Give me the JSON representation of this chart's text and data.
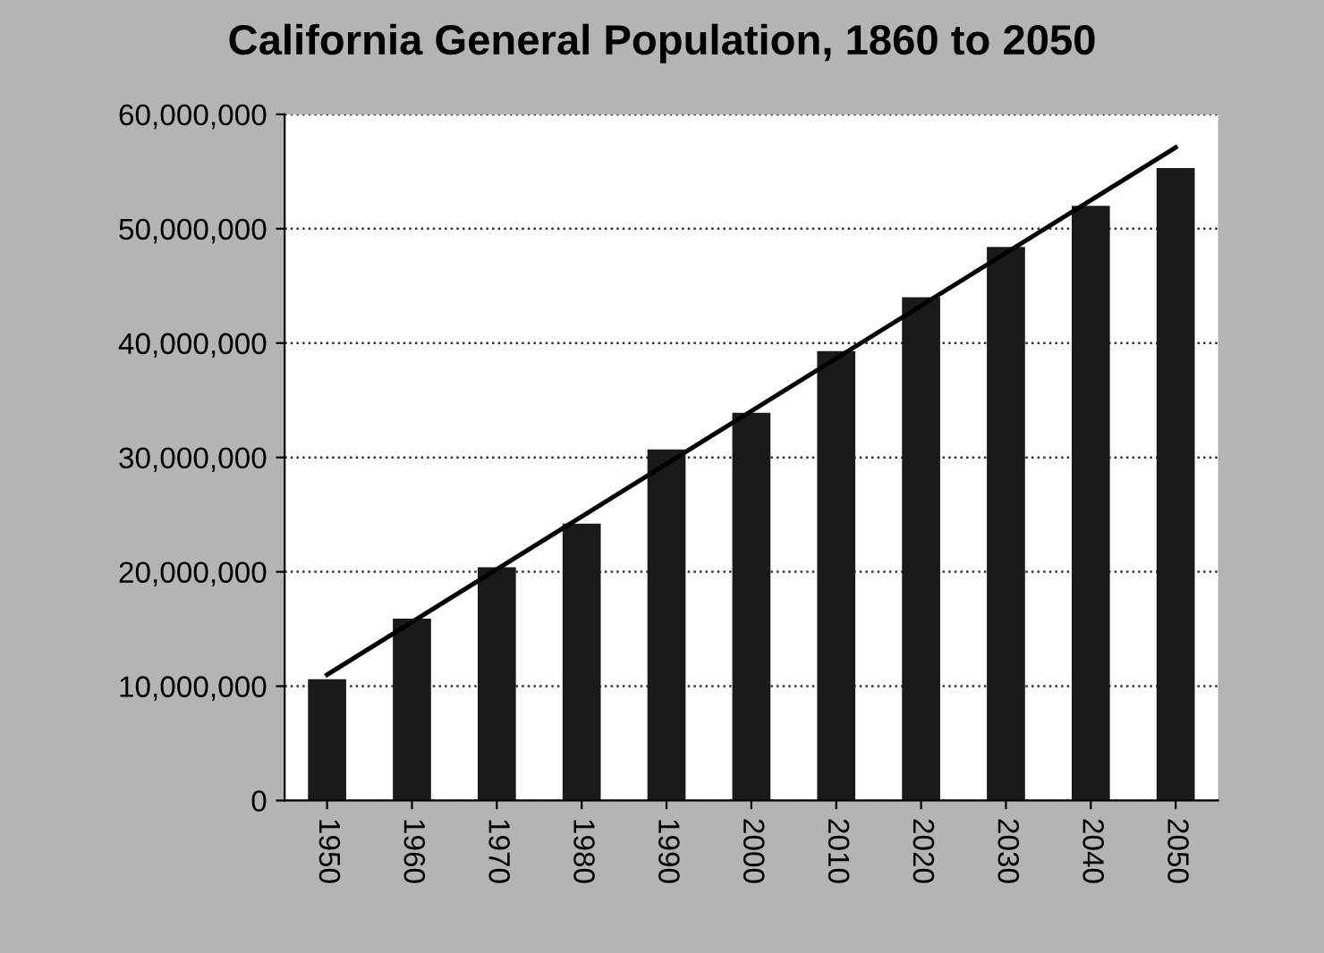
{
  "chart_data": {
    "type": "bar",
    "title": "California General Population, 1860 to 2050",
    "categories": [
      "1950",
      "1960",
      "1970",
      "1980",
      "1990",
      "2000",
      "2010",
      "2020",
      "2030",
      "2040",
      "2050"
    ],
    "series": [
      {
        "color": "#1a1a1a",
        "values": [
          10600000,
          15900000,
          20400000,
          24200000,
          30700000,
          33900000,
          39300000,
          44000000,
          48400000,
          52000000,
          55300000
        ]
      },
      {
        "type": "line",
        "color": "#000000",
        "values": [
          11000000,
          null,
          null,
          null,
          null,
          null,
          null,
          null,
          null,
          null,
          57100000
        ]
      }
    ],
    "ylim": [
      0,
      60000000
    ],
    "yticks": [
      {
        "value": 0,
        "label": "0"
      },
      {
        "value": 10000000,
        "label": "10,000,000"
      },
      {
        "value": 20000000,
        "label": "20,000,000"
      },
      {
        "value": 30000000,
        "label": "30,000,000"
      },
      {
        "value": 40000000,
        "label": "40,000,000"
      },
      {
        "value": 50000000,
        "label": "50,000,000"
      },
      {
        "value": 60000000,
        "label": "60,000,000"
      }
    ],
    "grid": "y",
    "legend": false,
    "line_style": "solid"
  }
}
